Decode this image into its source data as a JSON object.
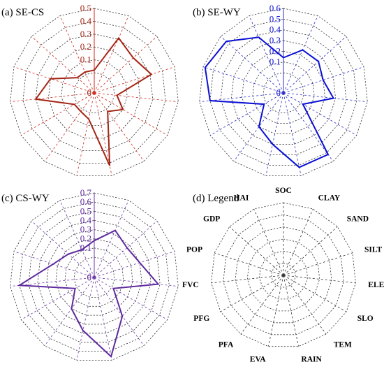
{
  "chart_data": [
    {
      "type": "radar",
      "title": "(a) SE-CS",
      "categories": [
        "SOC",
        "CLAY",
        "SAND",
        "SILT",
        "ELE",
        "SLO",
        "TEM",
        "RAIN",
        "EVA",
        "PFA",
        "PFG",
        "FVC",
        "POP",
        "GDP",
        "HAI"
      ],
      "rlim": [
        0,
        0.5
      ],
      "ticks": [
        "0",
        "0.1",
        "0.2",
        "0.3",
        "0.4",
        "0.5"
      ],
      "colors": {
        "series": "#a32515",
        "axis": "#cc2a1e"
      },
      "series": [
        {
          "values": [
            0.02,
            0.31,
            0.25,
            0.31,
            0.02,
            0.1,
            0.02,
            0.42,
            0.05,
            0.02,
            0.02,
            0.3,
            0.2,
            0.02,
            0.02
          ]
        }
      ]
    },
    {
      "type": "radar",
      "title": "(b) SE-WY",
      "categories": [
        "SOC",
        "CLAY",
        "SAND",
        "SILT",
        "ELE",
        "SLO",
        "TEM",
        "RAIN",
        "EVA",
        "PFA",
        "PFG",
        "FVC",
        "POP",
        "GDP",
        "HAI"
      ],
      "rlim": [
        0,
        0.6
      ],
      "ticks": [
        "0",
        "0.1",
        "0.2",
        "0.3",
        "0.4",
        "0.5",
        "0.6"
      ],
      "colors": {
        "series": "#0a10d4",
        "axis": "#2b30c8"
      },
      "series": [
        {
          "values": [
            0.14,
            0.25,
            0.25,
            0.2,
            0.28,
            0.02,
            0.52,
            0.52,
            0.3,
            0.2,
            0.02,
            0.5,
            0.58,
            0.53,
            0.38
          ]
        }
      ]
    },
    {
      "type": "radar",
      "title": "(c) CS-WY",
      "categories": [
        "SOC",
        "CLAY",
        "SAND",
        "SILT",
        "ELE",
        "SLO",
        "TEM",
        "RAIN",
        "EVA",
        "PFA",
        "PFG",
        "FVC",
        "POP",
        "GDP",
        "HAI"
      ],
      "rlim": [
        0,
        0.7
      ],
      "ticks": [
        "0",
        "0.1",
        "0.2",
        "0.3",
        "0.4",
        "0.5",
        "0.6",
        "0.7"
      ],
      "colors": {
        "series": "#5e2a9e",
        "axis": "#6b3aa8"
      },
      "series": [
        {
          "values": [
            0.18,
            0.34,
            0.26,
            0.3,
            0.48,
            0.02,
            0.3,
            0.66,
            0.37,
            0.2,
            0.02,
            0.6,
            0.25,
            0.16,
            0.11
          ]
        }
      ]
    },
    {
      "type": "radar",
      "title": "(d) Legend",
      "categories": [
        "SOC",
        "CLAY",
        "SAND",
        "SILT",
        "ELE",
        "SLO",
        "TEM",
        "RAIN",
        "EVA",
        "PFA",
        "PFG",
        "FVC",
        "POP",
        "GDP",
        "HAI"
      ],
      "colors": {
        "axis": "#333333"
      },
      "series": []
    }
  ]
}
